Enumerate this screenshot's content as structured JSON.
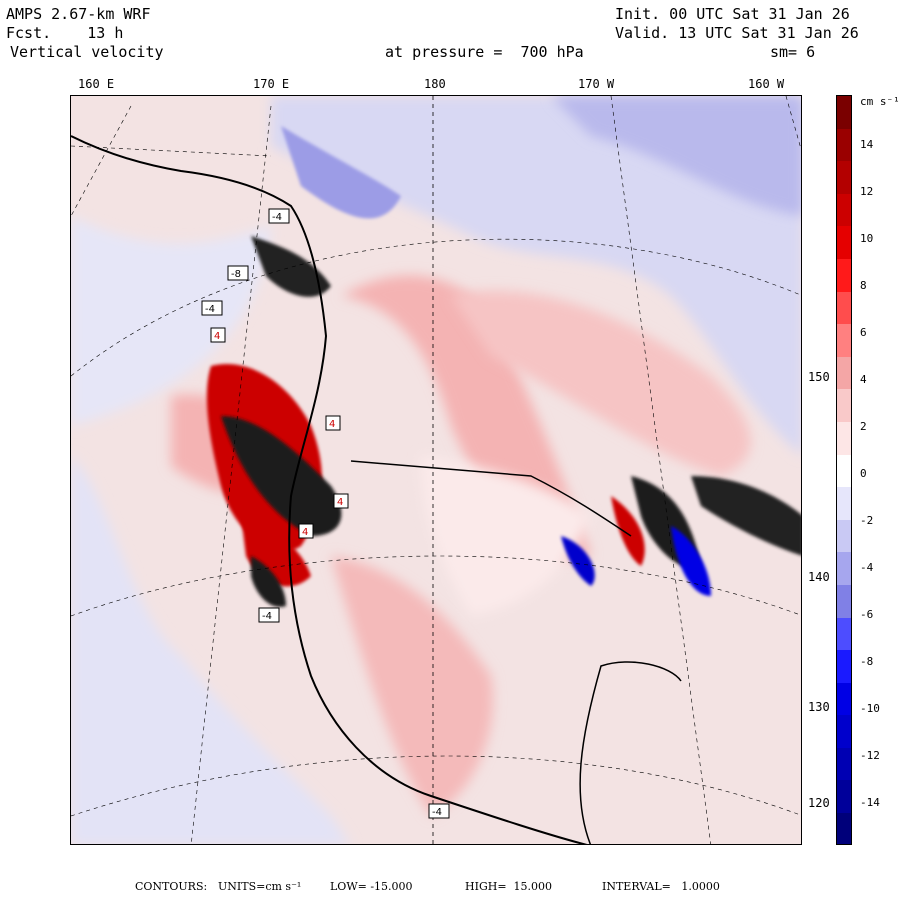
{
  "header": {
    "model": "AMPS 2.67-km WRF",
    "fcst_label": "Fcst.",
    "fcst_value": "13 h",
    "field": "Vertical velocity",
    "init": "Init. 00 UTC Sat 31 Jan 26",
    "valid": "Valid. 13 UTC Sat 31 Jan 26",
    "pressure": "at pressure =  700 hPa",
    "smooth": "sm= 6"
  },
  "longitudes": [
    "160 E",
    "170 E",
    "180",
    "170 W",
    "160 W"
  ],
  "latitudes": [
    "150 W",
    "140 W",
    "130 W",
    "120 W"
  ],
  "colorbar": {
    "unit": "cm s⁻¹",
    "labels": [
      "14",
      "12",
      "10",
      "8",
      "6",
      "4",
      "2",
      "0",
      "-2",
      "-4",
      "-6",
      "-8",
      "-10",
      "-12",
      "-14"
    ],
    "colors": [
      "#7a0000",
      "#9a0000",
      "#b30000",
      "#cc0000",
      "#e50000",
      "#ff1a1a",
      "#ff4d4d",
      "#ff8080",
      "#f4a6a6",
      "#f9c9c9",
      "#fde6e6",
      "#ffffff",
      "#e6e6fb",
      "#c9c9f4",
      "#a6a6ee",
      "#8080e6",
      "#4d4dff",
      "#1a1aff",
      "#0000e5",
      "#0000cc",
      "#0000b3",
      "#00009a",
      "#00007a"
    ]
  },
  "contour_labels": [
    "-4",
    "-8",
    "-4",
    "4",
    "4",
    "4",
    "4",
    "-4",
    "-4"
  ],
  "footer": {
    "contours": "CONTOURS:",
    "units": "UNITS=cm s⁻¹",
    "low": "LOW= -15.000",
    "high": "HIGH=  15.000",
    "interval": "INTERVAL=   1.0000"
  }
}
